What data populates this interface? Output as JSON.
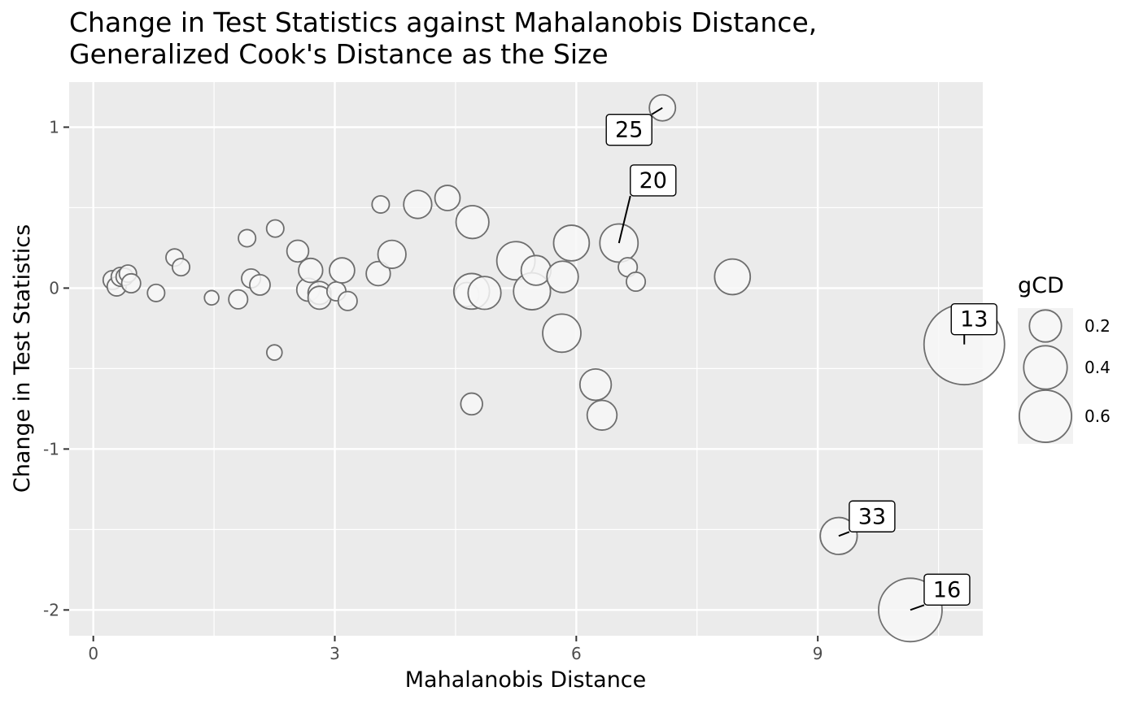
{
  "chart_data": {
    "type": "scatter",
    "title": "Change in Test Statistics against Mahalanobis Distance,",
    "subtitle": "Generalized Cook's Distance as the Size",
    "xlabel": "Mahalanobis Distance",
    "ylabel": "Change in Test Statistics",
    "xlim": [
      -0.3,
      11.05
    ],
    "ylim": [
      -2.16,
      1.28
    ],
    "xticks": [
      0,
      3,
      6,
      9
    ],
    "xtick_labels": [
      "0",
      "3",
      "6",
      "9"
    ],
    "yticks": [
      1,
      0,
      -1,
      -2
    ],
    "ytick_labels": [
      "1",
      "0",
      "-1",
      "-2"
    ],
    "grid": true,
    "size_legend": {
      "title": "gCD",
      "placement": "right",
      "values": [
        0.2,
        0.4,
        0.6
      ],
      "labels": [
        "0.2",
        "0.4",
        "0.6"
      ]
    },
    "points": [
      {
        "x": 0.24,
        "y": 0.05,
        "gcd": 0.02
      },
      {
        "x": 0.29,
        "y": 0.01,
        "gcd": 0.02
      },
      {
        "x": 0.34,
        "y": 0.07,
        "gcd": 0.02
      },
      {
        "x": 0.39,
        "y": 0.07,
        "gcd": 0.015
      },
      {
        "x": 0.43,
        "y": 0.09,
        "gcd": 0.015
      },
      {
        "x": 0.47,
        "y": 0.03,
        "gcd": 0.02
      },
      {
        "x": 0.78,
        "y": -0.03,
        "gcd": 0.015
      },
      {
        "x": 1.01,
        "y": 0.19,
        "gcd": 0.015
      },
      {
        "x": 1.09,
        "y": 0.13,
        "gcd": 0.015
      },
      {
        "x": 1.47,
        "y": -0.06,
        "gcd": 0.008
      },
      {
        "x": 1.8,
        "y": -0.07,
        "gcd": 0.02
      },
      {
        "x": 1.91,
        "y": 0.31,
        "gcd": 0.015
      },
      {
        "x": 1.96,
        "y": 0.06,
        "gcd": 0.02
      },
      {
        "x": 2.07,
        "y": 0.02,
        "gcd": 0.025
      },
      {
        "x": 2.25,
        "y": -0.4,
        "gcd": 0.01
      },
      {
        "x": 2.26,
        "y": 0.37,
        "gcd": 0.015
      },
      {
        "x": 2.54,
        "y": 0.23,
        "gcd": 0.03
      },
      {
        "x": 2.67,
        "y": -0.01,
        "gcd": 0.035
      },
      {
        "x": 2.7,
        "y": 0.11,
        "gcd": 0.04
      },
      {
        "x": 2.81,
        "y": -0.03,
        "gcd": 0.035
      },
      {
        "x": 2.81,
        "y": -0.06,
        "gcd": 0.035
      },
      {
        "x": 3.02,
        "y": -0.02,
        "gcd": 0.02
      },
      {
        "x": 3.09,
        "y": 0.11,
        "gcd": 0.045
      },
      {
        "x": 3.16,
        "y": -0.08,
        "gcd": 0.02
      },
      {
        "x": 3.54,
        "y": 0.09,
        "gcd": 0.04
      },
      {
        "x": 3.57,
        "y": 0.52,
        "gcd": 0.015
      },
      {
        "x": 3.71,
        "y": 0.21,
        "gcd": 0.06
      },
      {
        "x": 4.03,
        "y": 0.52,
        "gcd": 0.06
      },
      {
        "x": 4.4,
        "y": 0.56,
        "gcd": 0.045
      },
      {
        "x": 4.64,
        "y": -0.04,
        "gcd": 0.04
      },
      {
        "x": 4.7,
        "y": -0.72,
        "gcd": 0.03
      },
      {
        "x": 4.71,
        "y": 0.41,
        "gcd": 0.09
      },
      {
        "x": 4.7,
        "y": -0.02,
        "gcd": 0.11
      },
      {
        "x": 4.86,
        "y": -0.03,
        "gcd": 0.09
      },
      {
        "x": 5.25,
        "y": 0.17,
        "gcd": 0.13
      },
      {
        "x": 5.45,
        "y": -0.02,
        "gcd": 0.12
      },
      {
        "x": 5.5,
        "y": 0.11,
        "gcd": 0.07
      },
      {
        "x": 5.83,
        "y": 0.07,
        "gcd": 0.08
      },
      {
        "x": 5.82,
        "y": -0.28,
        "gcd": 0.13
      },
      {
        "x": 5.94,
        "y": 0.28,
        "gcd": 0.11
      },
      {
        "x": 6.24,
        "y": -0.6,
        "gcd": 0.08
      },
      {
        "x": 6.32,
        "y": -0.79,
        "gcd": 0.07
      },
      {
        "x": 6.53,
        "y": 0.28,
        "gcd": 0.13,
        "label": "20"
      },
      {
        "x": 6.64,
        "y": 0.13,
        "gcd": 0.02
      },
      {
        "x": 6.74,
        "y": 0.04,
        "gcd": 0.02
      },
      {
        "x": 7.07,
        "y": 1.12,
        "gcd": 0.05,
        "label": "25"
      },
      {
        "x": 7.94,
        "y": 0.07,
        "gcd": 0.11
      },
      {
        "x": 9.26,
        "y": -1.54,
        "gcd": 0.12,
        "label": "33"
      },
      {
        "x": 10.15,
        "y": -2.0,
        "gcd": 0.42,
        "label": "16"
      },
      {
        "x": 10.82,
        "y": -0.35,
        "gcd": 0.71,
        "label": "13"
      }
    ],
    "colors": {
      "panel": "#ebebeb",
      "grid": "#ffffff",
      "point_fill": "#f7f7f7",
      "point_stroke": "#6e6e6e",
      "label_box": "#ffffff"
    }
  }
}
